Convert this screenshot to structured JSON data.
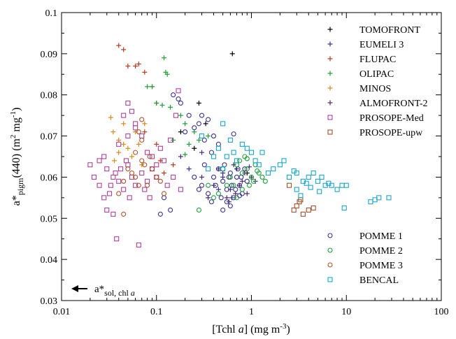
{
  "chart_data": {
    "type": "scatter",
    "x_scale": "log",
    "xlim": [
      0.01,
      100
    ],
    "ylim": [
      0.03,
      0.1
    ],
    "xticks": [
      {
        "v": 0.01,
        "label": "0.01"
      },
      {
        "v": 0.1,
        "label": "0.1"
      },
      {
        "v": 1,
        "label": "1"
      },
      {
        "v": 10,
        "label": "10"
      },
      {
        "v": 100,
        "label": "100"
      }
    ],
    "yticks": [
      {
        "v": 0.03,
        "label": "0.03"
      },
      {
        "v": 0.04,
        "label": "0.04"
      },
      {
        "v": 0.05,
        "label": "0.05"
      },
      {
        "v": 0.06,
        "label": "0.06"
      },
      {
        "v": 0.07,
        "label": "0.07"
      },
      {
        "v": 0.08,
        "label": "0.08"
      },
      {
        "v": 0.09,
        "label": "0.09"
      },
      {
        "v": 0.1,
        "label": "0.1"
      }
    ],
    "xlabel": {
      "pre": "[Tchl ",
      "ital": "a",
      "mid": "] (mg m",
      "sup": "-3",
      "post": ")"
    },
    "ylabel": {
      "a": "a*",
      "sub": "pigm",
      "b": "(440) (m",
      "sup1": "2",
      "c": " mg",
      "sup2": "-1",
      "d": ")"
    },
    "annotation": {
      "a": "a*",
      "sub": "sol, chl ",
      "ital": "a"
    },
    "grid": false,
    "legend_top": "top-right",
    "legend_bottom": "bottom-right",
    "series": [
      {
        "name": "TOMOFRONT",
        "marker": "plus",
        "color": "#000000",
        "legend": "top",
        "points": [
          [
            0.63,
            0.09
          ],
          [
            0.28,
            0.078
          ],
          [
            0.33,
            0.073
          ],
          [
            0.18,
            0.071
          ],
          [
            0.25,
            0.067
          ],
          [
            0.9,
            0.061
          ]
        ]
      },
      {
        "name": "EUMELI 3",
        "marker": "plus",
        "color": "#3a2f8f",
        "legend": "top",
        "points": [
          [
            0.18,
            0.065
          ],
          [
            0.22,
            0.062
          ],
          [
            0.3,
            0.066
          ],
          [
            0.45,
            0.057
          ],
          [
            0.5,
            0.06
          ],
          [
            0.62,
            0.055
          ]
        ]
      },
      {
        "name": "FLUPAC",
        "marker": "plus",
        "color": "#b23a1e",
        "legend": "top",
        "points": [
          [
            0.04,
            0.092
          ],
          [
            0.045,
            0.091
          ],
          [
            0.05,
            0.087
          ],
          [
            0.06,
            0.087
          ],
          [
            0.065,
            0.0875
          ],
          [
            0.075,
            0.0855
          ],
          [
            0.09,
            0.082
          ],
          [
            0.1,
            0.078
          ],
          [
            0.075,
            0.071
          ],
          [
            0.1,
            0.068
          ],
          [
            0.11,
            0.064
          ],
          [
            0.15,
            0.063
          ],
          [
            0.12,
            0.061
          ]
        ]
      },
      {
        "name": "OLIPAC",
        "marker": "plus",
        "color": "#1f9e3a",
        "legend": "top",
        "points": [
          [
            0.12,
            0.089
          ],
          [
            0.125,
            0.0855
          ],
          [
            0.13,
            0.085
          ],
          [
            0.08,
            0.082
          ],
          [
            0.09,
            0.082
          ],
          [
            0.1,
            0.078
          ],
          [
            0.115,
            0.0775
          ],
          [
            0.14,
            0.077
          ],
          [
            0.18,
            0.075
          ],
          [
            0.2,
            0.073
          ],
          [
            0.25,
            0.071
          ],
          [
            0.28,
            0.069
          ],
          [
            0.15,
            0.069
          ],
          [
            0.35,
            0.07
          ],
          [
            0.22,
            0.068
          ],
          [
            0.2,
            0.0655
          ]
        ]
      },
      {
        "name": "MINOS",
        "marker": "plus",
        "color": "#d68a1e",
        "legend": "top",
        "points": [
          [
            0.033,
            0.0745
          ],
          [
            0.035,
            0.071
          ],
          [
            0.04,
            0.069
          ],
          [
            0.045,
            0.068
          ],
          [
            0.05,
            0.067
          ],
          [
            0.06,
            0.071
          ],
          [
            0.055,
            0.065
          ],
          [
            0.07,
            0.063
          ],
          [
            0.04,
            0.066
          ],
          [
            0.036,
            0.064
          ],
          [
            0.065,
            0.068
          ],
          [
            0.075,
            0.073
          ],
          [
            0.045,
            0.073
          ]
        ]
      },
      {
        "name": "ALMOFRONT-2",
        "marker": "plus",
        "color": "#4a2a6e",
        "legend": "top",
        "points": [
          [
            0.3,
            0.06
          ],
          [
            0.4,
            0.058
          ],
          [
            0.5,
            0.061
          ],
          [
            0.6,
            0.057
          ],
          [
            0.7,
            0.062
          ],
          [
            0.8,
            0.059
          ],
          [
            0.9,
            0.056
          ],
          [
            1.0,
            0.06
          ],
          [
            0.55,
            0.055
          ],
          [
            0.65,
            0.063
          ],
          [
            0.75,
            0.058
          ],
          [
            0.85,
            0.061
          ],
          [
            0.45,
            0.062
          ],
          [
            0.35,
            0.055
          ],
          [
            1.1,
            0.059
          ],
          [
            0.58,
            0.054
          ],
          [
            0.68,
            0.056
          ],
          [
            0.95,
            0.0625
          ]
        ]
      },
      {
        "name": "PROSOPE-Med",
        "marker": "square",
        "color": "#b0409a",
        "legend": "top",
        "points": [
          [
            0.02,
            0.063
          ],
          [
            0.022,
            0.06
          ],
          [
            0.025,
            0.058
          ],
          [
            0.028,
            0.055
          ],
          [
            0.03,
            0.062
          ],
          [
            0.032,
            0.056
          ],
          [
            0.035,
            0.06
          ],
          [
            0.04,
            0.059
          ],
          [
            0.045,
            0.057
          ],
          [
            0.05,
            0.063
          ],
          [
            0.055,
            0.06
          ],
          [
            0.06,
            0.058
          ],
          [
            0.07,
            0.061
          ],
          [
            0.08,
            0.059
          ],
          [
            0.09,
            0.062
          ],
          [
            0.1,
            0.06
          ],
          [
            0.03,
            0.052
          ],
          [
            0.035,
            0.051
          ],
          [
            0.038,
            0.045
          ],
          [
            0.065,
            0.0435
          ],
          [
            0.028,
            0.065
          ],
          [
            0.04,
            0.068
          ],
          [
            0.05,
            0.07
          ],
          [
            0.06,
            0.072
          ],
          [
            0.07,
            0.07
          ],
          [
            0.08,
            0.066
          ],
          [
            0.09,
            0.065
          ],
          [
            0.11,
            0.067
          ],
          [
            0.12,
            0.064
          ],
          [
            0.14,
            0.069
          ],
          [
            0.045,
            0.075
          ],
          [
            0.05,
            0.078
          ],
          [
            0.055,
            0.076
          ],
          [
            0.06,
            0.073
          ],
          [
            0.16,
            0.075
          ],
          [
            0.17,
            0.081
          ],
          [
            0.042,
            0.062
          ],
          [
            0.048,
            0.064
          ],
          [
            0.052,
            0.055
          ],
          [
            0.075,
            0.057
          ],
          [
            0.085,
            0.055
          ],
          [
            0.025,
            0.064
          ],
          [
            0.033,
            0.058
          ],
          [
            0.037,
            0.061
          ],
          [
            0.1,
            0.063
          ],
          [
            0.13,
            0.058
          ],
          [
            0.15,
            0.06
          ],
          [
            0.18,
            0.057
          ]
        ]
      },
      {
        "name": "PROSOPE-upw",
        "marker": "square",
        "color": "#a0522d",
        "legend": "top",
        "points": [
          [
            2.5,
            0.058
          ],
          [
            2.8,
            0.052
          ],
          [
            3.0,
            0.053
          ],
          [
            3.2,
            0.054
          ],
          [
            3.5,
            0.051
          ],
          [
            4.0,
            0.052
          ],
          [
            4.5,
            0.0525
          ],
          [
            3.3,
            0.0545
          ]
        ]
      },
      {
        "name": "POMME 1",
        "marker": "circle",
        "color": "#3a2f8f",
        "legend": "bottom",
        "points": [
          [
            0.3,
            0.058
          ],
          [
            0.35,
            0.056
          ],
          [
            0.4,
            0.06
          ],
          [
            0.45,
            0.062
          ],
          [
            0.5,
            0.059
          ],
          [
            0.55,
            0.057
          ],
          [
            0.6,
            0.061
          ],
          [
            0.65,
            0.055
          ],
          [
            0.7,
            0.06
          ],
          [
            0.75,
            0.058
          ],
          [
            0.8,
            0.056
          ],
          [
            0.85,
            0.062
          ],
          [
            0.9,
            0.059
          ],
          [
            0.25,
            0.06
          ],
          [
            0.28,
            0.057
          ],
          [
            0.32,
            0.063
          ],
          [
            0.38,
            0.054
          ],
          [
            0.42,
            0.058
          ],
          [
            0.48,
            0.055
          ],
          [
            0.52,
            0.063
          ],
          [
            0.58,
            0.06
          ],
          [
            0.62,
            0.058
          ],
          [
            0.68,
            0.057
          ],
          [
            0.72,
            0.062
          ],
          [
            0.78,
            0.06
          ],
          [
            0.5,
            0.052
          ],
          [
            0.55,
            0.054
          ],
          [
            0.6,
            0.053
          ],
          [
            0.2,
            0.071
          ],
          [
            0.25,
            0.072
          ],
          [
            0.3,
            0.075
          ],
          [
            0.35,
            0.074
          ],
          [
            0.4,
            0.07
          ],
          [
            0.45,
            0.068
          ],
          [
            0.18,
            0.078
          ],
          [
            0.15,
            0.08
          ],
          [
            0.17,
            0.079
          ],
          [
            0.22,
            0.075
          ],
          [
            0.28,
            0.073
          ],
          [
            0.12,
            0.055
          ],
          [
            0.14,
            0.052
          ],
          [
            0.11,
            0.051
          ],
          [
            0.65,
            0.0705
          ],
          [
            0.32,
            0.069
          ],
          [
            0.38,
            0.066
          ],
          [
            0.75,
            0.0555
          ]
        ]
      },
      {
        "name": "POMME 2",
        "marker": "circle",
        "color": "#1f9e3a",
        "legend": "bottom",
        "points": [
          [
            0.5,
            0.062
          ],
          [
            0.6,
            0.06
          ],
          [
            0.7,
            0.063
          ],
          [
            0.8,
            0.061
          ],
          [
            0.9,
            0.062
          ],
          [
            1.0,
            0.06
          ],
          [
            1.1,
            0.063
          ],
          [
            1.2,
            0.061
          ],
          [
            0.65,
            0.058
          ],
          [
            0.75,
            0.064
          ],
          [
            0.85,
            0.065
          ],
          [
            0.95,
            0.058
          ],
          [
            1.05,
            0.059
          ],
          [
            1.3,
            0.06
          ],
          [
            0.55,
            0.058
          ],
          [
            0.45,
            0.056
          ],
          [
            0.4,
            0.055
          ],
          [
            0.35,
            0.058
          ],
          [
            0.28,
            0.052
          ],
          [
            0.7,
            0.055
          ],
          [
            0.8,
            0.057
          ],
          [
            0.9,
            0.0645
          ],
          [
            1.4,
            0.059
          ],
          [
            1.15,
            0.0615
          ]
        ]
      },
      {
        "name": "POMME 3",
        "marker": "circle",
        "color": "#b0502e",
        "legend": "bottom",
        "points": [
          [
            0.05,
            0.062
          ],
          [
            0.06,
            0.06
          ],
          [
            0.07,
            0.064
          ],
          [
            0.08,
            0.058
          ],
          [
            0.09,
            0.062
          ],
          [
            0.1,
            0.06
          ],
          [
            0.065,
            0.058
          ],
          [
            0.075,
            0.063
          ],
          [
            0.085,
            0.065
          ],
          [
            0.055,
            0.061
          ],
          [
            0.045,
            0.059
          ],
          [
            0.04,
            0.056
          ],
          [
            0.06,
            0.066
          ],
          [
            0.07,
            0.069
          ],
          [
            0.065,
            0.071
          ],
          [
            0.07,
            0.074
          ],
          [
            0.045,
            0.051
          ],
          [
            0.12,
            0.056
          ],
          [
            0.11,
            0.059
          ]
        ]
      },
      {
        "name": "BENCAL",
        "marker": "square",
        "color": "#19a6c9",
        "legend": "bottom",
        "points": [
          [
            0.5,
            0.073
          ],
          [
            0.8,
            0.068
          ],
          [
            1.0,
            0.066
          ],
          [
            1.2,
            0.063
          ],
          [
            1.3,
            0.066
          ],
          [
            1.5,
            0.061
          ],
          [
            1.7,
            0.062
          ],
          [
            2.0,
            0.063
          ],
          [
            2.2,
            0.064
          ],
          [
            2.5,
            0.06
          ],
          [
            3.0,
            0.061
          ],
          [
            3.5,
            0.059
          ],
          [
            4.0,
            0.06
          ],
          [
            4.5,
            0.061
          ],
          [
            5.0,
            0.059
          ],
          [
            5.5,
            0.06
          ],
          [
            6.0,
            0.058
          ],
          [
            7.0,
            0.058
          ],
          [
            8.0,
            0.057
          ],
          [
            9.0,
            0.058
          ],
          [
            10.0,
            0.058
          ],
          [
            3.0,
            0.057
          ],
          [
            3.3,
            0.0555
          ],
          [
            4.2,
            0.0575
          ],
          [
            0.6,
            0.069
          ],
          [
            0.9,
            0.067
          ],
          [
            0.55,
            0.065
          ],
          [
            0.65,
            0.066
          ],
          [
            0.7,
            0.064
          ],
          [
            0.5,
            0.062
          ],
          [
            1.1,
            0.064
          ],
          [
            2.8,
            0.0615
          ],
          [
            6.5,
            0.0585
          ],
          [
            9.5,
            0.0525
          ],
          [
            18.0,
            0.054
          ],
          [
            22.0,
            0.055
          ],
          [
            28.0,
            0.055
          ],
          [
            20.0,
            0.0545
          ],
          [
            3.8,
            0.0585
          ],
          [
            0.45,
            0.067
          ],
          [
            0.4,
            0.065
          ],
          [
            0.35,
            0.062
          ],
          [
            0.3,
            0.07
          ],
          [
            5.2,
            0.0565
          ]
        ]
      }
    ]
  }
}
